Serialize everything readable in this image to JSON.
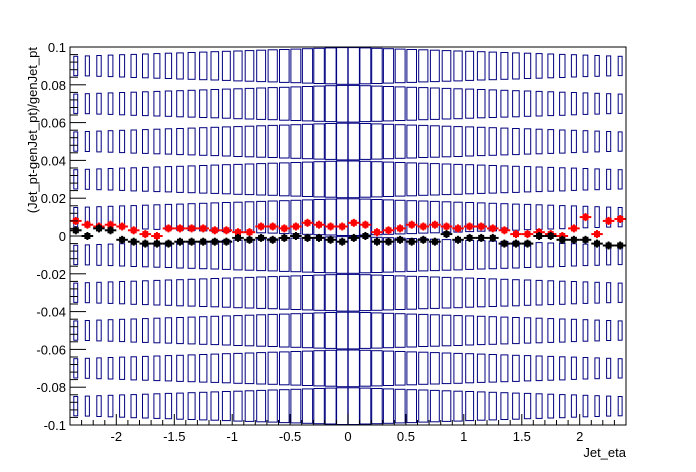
{
  "chart_data": {
    "type": "scatter",
    "title": "",
    "xlabel": "Jet_eta",
    "ylabel": "(Jet_pt-genJet_pt)/genJet_pt",
    "xlim": [
      -2.4,
      2.4
    ],
    "ylim": [
      -0.1,
      0.1
    ],
    "x_ticks": [
      -2,
      -1.5,
      -1,
      -0.5,
      0,
      0.5,
      1,
      1.5,
      2
    ],
    "x_tick_labels": [
      "-2",
      "-1.5",
      "-1",
      "-0.5",
      "0",
      "0.5",
      "1",
      "1.5",
      "2"
    ],
    "y_ticks": [
      -0.1,
      -0.08,
      -0.06,
      -0.04,
      -0.02,
      0,
      0.02,
      0.04,
      0.06,
      0.08,
      0.1
    ],
    "y_tick_labels": [
      "-0.1",
      "-0.08",
      "-0.06",
      "-0.04",
      "-0.02",
      "0",
      "0.02",
      "0.04",
      "0.06",
      "0.08",
      "0.1"
    ],
    "grid": false,
    "legend": "none",
    "x": [
      -2.35,
      -2.25,
      -2.15,
      -2.05,
      -1.95,
      -1.85,
      -1.75,
      -1.65,
      -1.55,
      -1.45,
      -1.35,
      -1.25,
      -1.15,
      -1.05,
      -0.95,
      -0.85,
      -0.75,
      -0.65,
      -0.55,
      -0.45,
      -0.35,
      -0.25,
      -0.15,
      -0.05,
      0.05,
      0.15,
      0.25,
      0.35,
      0.45,
      0.55,
      0.65,
      0.75,
      0.85,
      0.95,
      1.05,
      1.15,
      1.25,
      1.35,
      1.45,
      1.55,
      1.65,
      1.75,
      1.85,
      1.95,
      2.05,
      2.15,
      2.25,
      2.35
    ],
    "series": [
      {
        "color": "#ff0000",
        "values": [
          0.008,
          0.006,
          0.005,
          0.006,
          0.005,
          0.003,
          0.001,
          0.0,
          0.004,
          0.004,
          0.004,
          0.004,
          0.003,
          0.003,
          0.002,
          0.002,
          0.005,
          0.005,
          0.004,
          0.005,
          0.007,
          0.006,
          0.005,
          0.005,
          0.007,
          0.006,
          0.002,
          0.003,
          0.004,
          0.006,
          0.005,
          0.006,
          0.005,
          0.004,
          0.005,
          0.005,
          0.004,
          0.003,
          0.001,
          0.001,
          0.002,
          0.001,
          0.0,
          0.004,
          0.01,
          0.001,
          0.008,
          0.009
        ]
      },
      {
        "color": "#000000",
        "values": [
          0.003,
          0.0,
          0.004,
          0.003,
          -0.002,
          -0.003,
          -0.004,
          -0.004,
          -0.004,
          -0.003,
          -0.003,
          -0.003,
          -0.003,
          -0.003,
          -0.001,
          -0.002,
          -0.001,
          -0.002,
          -0.001,
          0.0,
          -0.001,
          -0.001,
          -0.002,
          -0.003,
          -0.001,
          0.0,
          -0.003,
          -0.003,
          -0.002,
          -0.003,
          -0.002,
          -0.003,
          0.001,
          -0.002,
          -0.001,
          -0.001,
          -0.001,
          -0.004,
          -0.004,
          -0.004,
          0.0,
          0.0,
          -0.002,
          -0.002,
          -0.002,
          -0.004,
          -0.005,
          -0.005
        ]
      }
    ],
    "box_rows": [
      0.09,
      0.07,
      0.05,
      0.03,
      0.01,
      -0.01,
      -0.03,
      -0.05,
      -0.07,
      -0.09
    ],
    "box_colors": {
      "box": "#000080"
    }
  }
}
